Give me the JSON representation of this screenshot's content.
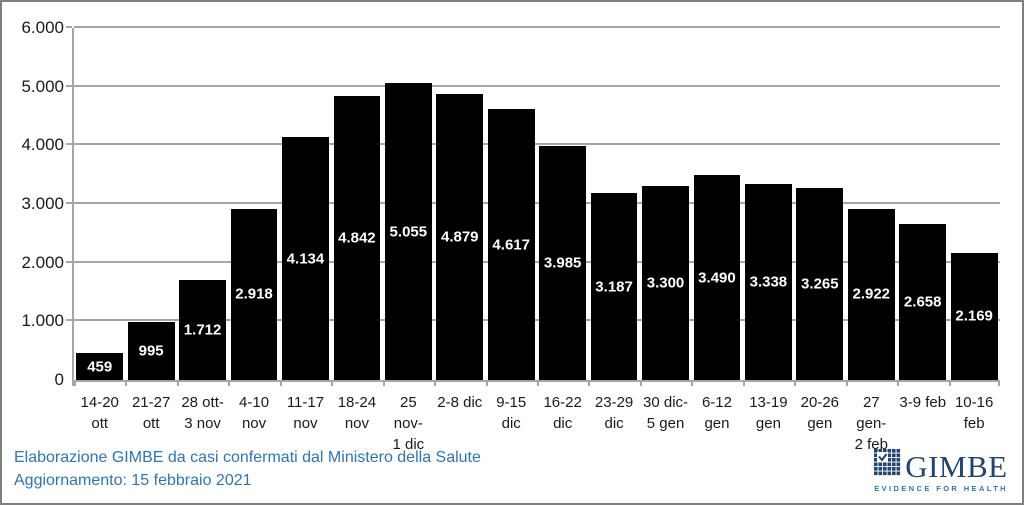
{
  "chart_data": {
    "type": "bar",
    "title": "",
    "xlabel": "",
    "ylabel": "",
    "categories": [
      "14-20 ott",
      "21-27 ott",
      "28 ott-3 nov",
      "4-10 nov",
      "11-17 nov",
      "18-24 nov",
      "25 nov-1 dic",
      "2-8 dic",
      "9-15 dic",
      "16-22 dic",
      "23-29 dic",
      "30 dic-5 gen",
      "6-12 gen",
      "13-19 gen",
      "20-26 gen",
      "27 gen-2 feb",
      "3-9 feb",
      "10-16 feb"
    ],
    "category_lines": [
      [
        "14-20",
        "ott"
      ],
      [
        "21-27",
        "ott"
      ],
      [
        "28 ott-",
        "3 nov"
      ],
      [
        "4-10",
        "nov"
      ],
      [
        "11-17",
        "nov"
      ],
      [
        "18-24",
        "nov"
      ],
      [
        "25 nov-",
        "1 dic"
      ],
      [
        "2-8 dic"
      ],
      [
        "9-15",
        "dic"
      ],
      [
        "16-22",
        "dic"
      ],
      [
        "23-29",
        "dic"
      ],
      [
        "30 dic-",
        "5 gen"
      ],
      [
        "6-12",
        "gen"
      ],
      [
        "13-19",
        "gen"
      ],
      [
        "20-26",
        "gen"
      ],
      [
        "27 gen-",
        "2 feb"
      ],
      [
        "3-9 feb"
      ],
      [
        "10-16",
        "feb"
      ]
    ],
    "values": [
      459,
      995,
      1712,
      2918,
      4134,
      4842,
      5055,
      4879,
      4617,
      3985,
      3187,
      3300,
      3490,
      3338,
      3265,
      2922,
      2658,
      2169
    ],
    "value_labels": [
      "459",
      "995",
      "1.712",
      "2.918",
      "4.134",
      "4.842",
      "5.055",
      "4.879",
      "4.617",
      "3.985",
      "3.187",
      "3.300",
      "3.490",
      "3.338",
      "3.265",
      "2.922",
      "2.658",
      "2.169"
    ],
    "ylim": [
      0,
      6000
    ],
    "yticks": [
      0,
      1000,
      2000,
      3000,
      4000,
      5000,
      6000
    ],
    "ytick_labels": [
      "0",
      "1.000",
      "2.000",
      "3.000",
      "4.000",
      "5.000",
      "6.000"
    ],
    "grid": true,
    "legend_position": "none",
    "bar_color": "#000000",
    "value_label_color": "#FFFFFF",
    "gridline_color": "#A6A6A6",
    "axis_text_color": "#1A1A1A"
  },
  "footer": {
    "line1": "Elaborazione GIMBE da casi confermati dal Ministero della Salute",
    "line2": "Aggiornamento: 15 febbraio 2021",
    "text_color": "#2E75B6"
  },
  "logo": {
    "name": "GIMBE",
    "tagline": "EVIDENCE FOR HEALTH",
    "wordmark_color": "#1F4473",
    "tagline_color": "#2E75B6",
    "icon": "gimbe-grid-check-icon"
  }
}
